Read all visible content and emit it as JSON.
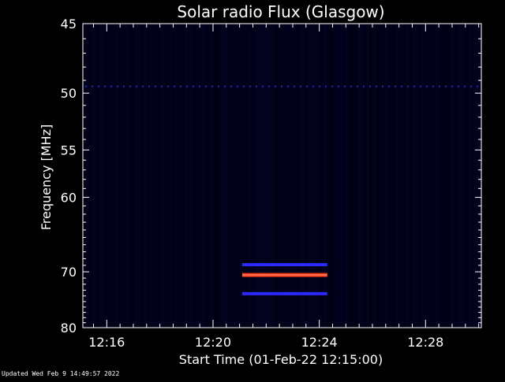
{
  "chart_data": {
    "type": "heatmap",
    "title": "Solar radio Flux (Glasgow)",
    "xlabel": "Start Time (01-Feb-22 12:15:00)",
    "ylabel": "Frequency [MHz]",
    "x_ticks": [
      "12:16",
      "12:20",
      "12:24",
      "12:28"
    ],
    "x_tick_minutes": [
      16,
      20,
      24,
      28
    ],
    "xlim_minutes": [
      15.1,
      30.1
    ],
    "y_ticks": [
      45,
      50,
      55,
      60,
      70,
      80
    ],
    "ylim": [
      45,
      80
    ],
    "y_scale": "reciprocal",
    "background": "dark navy, low intensity noise",
    "features": [
      {
        "name": "band",
        "freq_mhz": 68.9,
        "t_start": 21.1,
        "t_end": 24.3,
        "level": "medium",
        "color": "#2a2aff"
      },
      {
        "name": "band",
        "freq_mhz": 70.5,
        "t_start": 21.1,
        "t_end": 24.3,
        "level": "high",
        "color": "#ff3a1a"
      },
      {
        "name": "band",
        "freq_mhz": 73.6,
        "t_start": 21.1,
        "t_end": 24.3,
        "level": "medium",
        "color": "#2a2aff"
      },
      {
        "name": "dashed line",
        "freq_mhz": 49.5,
        "t_start": 15.1,
        "t_end": 30.1,
        "level": "low",
        "color": "#1a1a9a"
      }
    ],
    "grid": false
  },
  "footer": {
    "updated": "Updated Wed Feb  9 14:49:57 2022"
  }
}
